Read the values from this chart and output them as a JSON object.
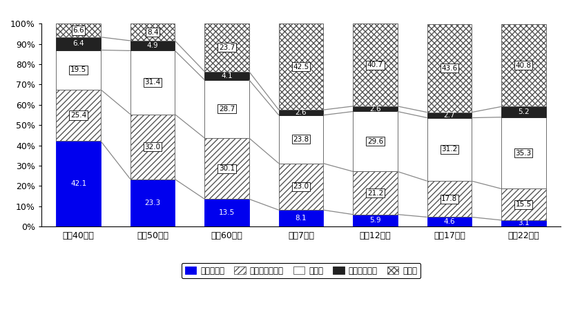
{
  "categories": [
    "昭和40年度",
    "昭和50年度",
    "昭和60年度",
    "平成7年度",
    "平成12年度",
    "平成17年度",
    "平成22年度"
  ],
  "series_names": [
    "農林水産業",
    "その他の自営業",
    "被用者",
    "その他の職業",
    "無　職"
  ],
  "values": [
    [
      42.1,
      23.3,
      13.5,
      8.1,
      5.9,
      4.6,
      3.1
    ],
    [
      25.4,
      32.0,
      30.1,
      23.0,
      21.2,
      17.8,
      15.5
    ],
    [
      19.5,
      31.4,
      28.7,
      23.8,
      29.6,
      31.2,
      35.3
    ],
    [
      6.4,
      4.9,
      4.1,
      2.6,
      2.6,
      2.7,
      5.2
    ],
    [
      6.6,
      8.4,
      23.7,
      42.5,
      40.7,
      43.6,
      40.8
    ]
  ],
  "face_colors": [
    "#0000ee",
    "#ffffff",
    "#ffffff",
    "#222222",
    "#ffffff"
  ],
  "edge_colors": [
    "#0000ee",
    "#555555",
    "#555555",
    "#222222",
    "#555555"
  ],
  "hatch_patterns": [
    "",
    "////",
    "",
    "",
    "xxxx"
  ],
  "label_text_colors": [
    "white",
    "black",
    "black",
    "white",
    "black"
  ],
  "label_use_box": [
    false,
    true,
    true,
    false,
    true
  ],
  "ylim": [
    0,
    100
  ],
  "yticks": [
    0,
    10,
    20,
    30,
    40,
    50,
    60,
    70,
    80,
    90,
    100
  ],
  "legend_labels": [
    "農林水産業",
    "その他の自営業",
    "被用者",
    "その他の職業",
    "無　職"
  ],
  "bar_width": 0.6,
  "line_color": "#888888",
  "line_lw": 0.9,
  "connect_layers": [
    0,
    1,
    2,
    3
  ]
}
